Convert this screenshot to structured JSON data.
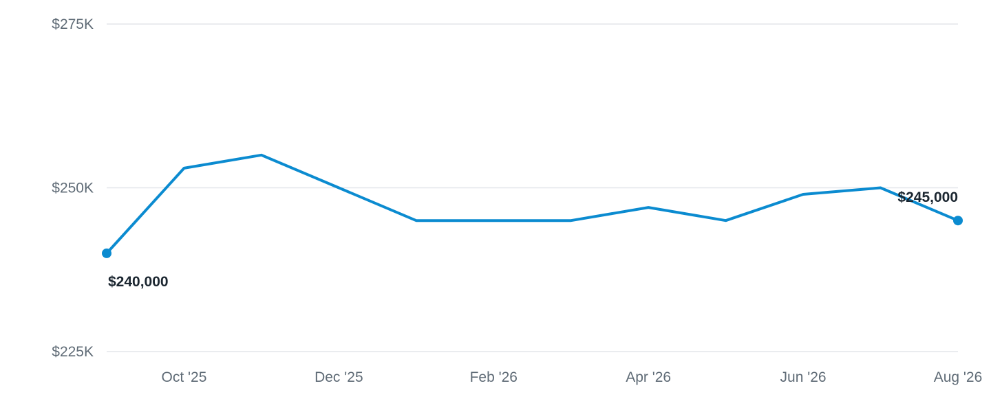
{
  "chart_data": {
    "type": "line",
    "title": "",
    "xlabel": "",
    "ylabel": "",
    "y_range": [
      225000,
      275000
    ],
    "y_ticks": [
      {
        "value": 275000,
        "label": "$275K"
      },
      {
        "value": 250000,
        "label": "$250K"
      },
      {
        "value": 225000,
        "label": "$225K"
      }
    ],
    "x_ticks": [
      {
        "date": "2025-10",
        "label": "Oct '25"
      },
      {
        "date": "2025-12",
        "label": "Dec '25"
      },
      {
        "date": "2026-02",
        "label": "Feb '26"
      },
      {
        "date": "2026-04",
        "label": "Apr '26"
      },
      {
        "date": "2026-06",
        "label": "Jun '26"
      },
      {
        "date": "2026-08",
        "label": "Aug '26"
      }
    ],
    "grid": true,
    "legend": "none",
    "line_color": "#0b8bd0",
    "series": [
      {
        "x": [
          "2025-09",
          "2025-10",
          "2025-11",
          "2025-12",
          "2026-01",
          "2026-02",
          "2026-03",
          "2026-04",
          "2026-05",
          "2026-06",
          "2026-07",
          "2026-08"
        ],
        "values": [
          240000,
          253000,
          255000,
          250000,
          245000,
          245000,
          245000,
          247000,
          245000,
          249000,
          250000,
          245000
        ]
      }
    ],
    "data_labels": [
      {
        "date": "2025-09",
        "text": "$240,000"
      },
      {
        "date": "2026-08",
        "text": "$245,000"
      }
    ]
  }
}
